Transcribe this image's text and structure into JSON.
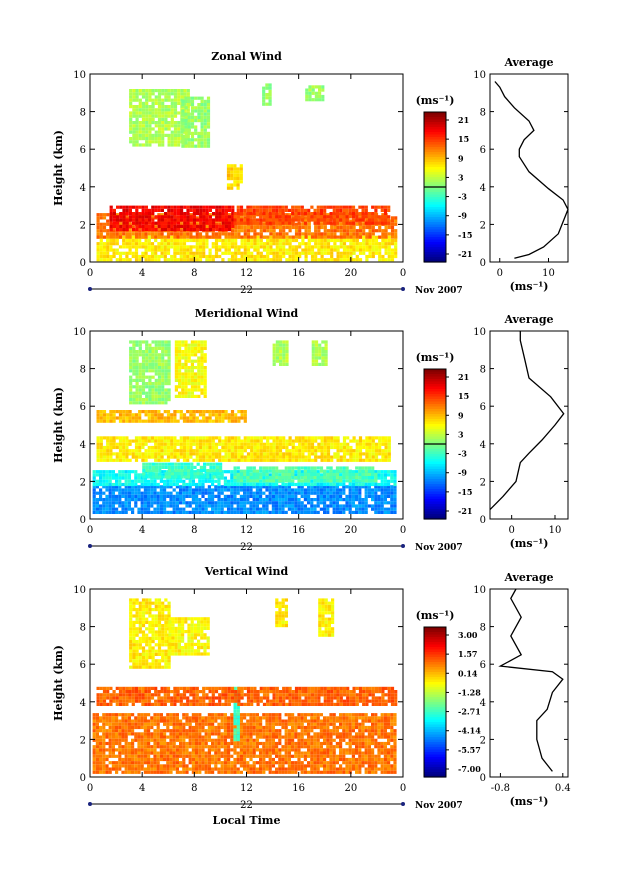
{
  "chart_data": [
    {
      "type": "heatmap",
      "title": "Zonal Wind",
      "ylabel": "Height (km)",
      "ylim": [
        0,
        10
      ],
      "yticks": [
        "0",
        "2",
        "4",
        "6",
        "8",
        "10"
      ],
      "xlim": [
        0,
        24
      ],
      "xticks": [
        "0",
        "4",
        "8",
        "12",
        "16",
        "20",
        "0"
      ],
      "day_label": "22",
      "date_label": "Nov 2007",
      "colorbar": {
        "unit": "(ms⁻¹)",
        "ticks": [
          "21",
          "15",
          "9",
          "3",
          "-3",
          "-9",
          "-15",
          "-21"
        ],
        "zero_line": true
      },
      "field": [
        {
          "x": [
            0.5,
            23.5
          ],
          "y": [
            0.2,
            1.4
          ],
          "v": 6
        },
        {
          "x": [
            0.5,
            23.5
          ],
          "y": [
            1.4,
            2.6
          ],
          "v": 11
        },
        {
          "x": [
            1.5,
            11
          ],
          "y": [
            1.8,
            3.0
          ],
          "v": 16
        },
        {
          "x": [
            11,
            23
          ],
          "y": [
            2.0,
            3.0
          ],
          "v": 13
        },
        {
          "x": [
            3,
            7.5
          ],
          "y": [
            6.2,
            9.2
          ],
          "v": 2
        },
        {
          "x": [
            7,
            9
          ],
          "y": [
            6.2,
            8.8
          ],
          "v": 1
        },
        {
          "x": [
            13.2,
            13.8
          ],
          "y": [
            8.4,
            9.5
          ],
          "v": 1
        },
        {
          "x": [
            16.5,
            17.8
          ],
          "y": [
            8.6,
            9.4
          ],
          "v": 1
        },
        {
          "x": [
            10.5,
            11.5
          ],
          "y": [
            4.0,
            5.2
          ],
          "v": 7
        }
      ],
      "average": {
        "title": "Average",
        "xlabel": "(ms⁻¹)",
        "xlim": [
          -2,
          14
        ],
        "xticks": [
          "0",
          "10"
        ],
        "ylim": [
          0,
          10
        ],
        "yticks": [
          "0",
          "2",
          "4",
          "6",
          "8",
          "10"
        ],
        "profile": [
          [
            3,
            0.2
          ],
          [
            6,
            0.4
          ],
          [
            9,
            0.8
          ],
          [
            12,
            1.5
          ],
          [
            14,
            2.8
          ],
          [
            13,
            3.3
          ],
          [
            10,
            3.9
          ],
          [
            6,
            4.8
          ],
          [
            4,
            5.6
          ],
          [
            4,
            6.0
          ],
          [
            5,
            6.5
          ],
          [
            7,
            7.0
          ],
          [
            6,
            7.5
          ],
          [
            3,
            8.2
          ],
          [
            1,
            8.8
          ],
          [
            0,
            9.3
          ],
          [
            -1,
            9.6
          ]
        ]
      }
    },
    {
      "type": "heatmap",
      "title": "Meridional Wind",
      "ylabel": "Height (km)",
      "ylim": [
        0,
        10
      ],
      "yticks": [
        "0",
        "2",
        "4",
        "6",
        "8",
        "10"
      ],
      "xlim": [
        0,
        24
      ],
      "xticks": [
        "0",
        "4",
        "8",
        "12",
        "16",
        "20",
        "0"
      ],
      "day_label": "22",
      "date_label": "Nov 2007",
      "colorbar": {
        "unit": "(ms⁻¹)",
        "ticks": [
          "21",
          "15",
          "9",
          "3",
          "-3",
          "-9",
          "-15",
          "-21"
        ],
        "zero_line": true
      },
      "field": [
        {
          "x": [
            0.2,
            23.5
          ],
          "y": [
            0.3,
            1.8
          ],
          "v": -10
        },
        {
          "x": [
            0.2,
            23.5
          ],
          "y": [
            1.8,
            2.6
          ],
          "v": -5
        },
        {
          "x": [
            4,
            10
          ],
          "y": [
            2.2,
            3.0
          ],
          "v": -3
        },
        {
          "x": [
            11,
            22
          ],
          "y": [
            2.0,
            2.8
          ],
          "v": -2
        },
        {
          "x": [
            0.5,
            23
          ],
          "y": [
            3.2,
            4.4
          ],
          "v": 6
        },
        {
          "x": [
            0.5,
            12
          ],
          "y": [
            5.2,
            5.8
          ],
          "v": 8
        },
        {
          "x": [
            3,
            6
          ],
          "y": [
            6.2,
            9.5
          ],
          "v": 1
        },
        {
          "x": [
            6.5,
            8.8
          ],
          "y": [
            6.5,
            9.5
          ],
          "v": 5
        },
        {
          "x": [
            14,
            15
          ],
          "y": [
            8.2,
            9.5
          ],
          "v": 2
        },
        {
          "x": [
            17,
            18
          ],
          "y": [
            8.2,
            9.5
          ],
          "v": 2
        }
      ],
      "average": {
        "title": "Average",
        "xlabel": "(ms⁻¹)",
        "xlim": [
          -5,
          13
        ],
        "xticks": [
          "0",
          "10"
        ],
        "ylim": [
          0,
          10
        ],
        "yticks": [
          "0",
          "2",
          "4",
          "6",
          "8",
          "10"
        ],
        "profile": [
          [
            -5,
            0.5
          ],
          [
            -2,
            1.2
          ],
          [
            1,
            2.0
          ],
          [
            2,
            3.0
          ],
          [
            4,
            3.5
          ],
          [
            7,
            4.2
          ],
          [
            10,
            5.0
          ],
          [
            12,
            5.6
          ],
          [
            9,
            6.5
          ],
          [
            4,
            7.5
          ],
          [
            3,
            8.5
          ],
          [
            2,
            9.5
          ],
          [
            2,
            10
          ]
        ]
      }
    },
    {
      "type": "heatmap",
      "title": "Vertical Wind",
      "ylabel": "Height (km)",
      "xlabel": "Local Time",
      "ylim": [
        0,
        10
      ],
      "yticks": [
        "0",
        "2",
        "4",
        "6",
        "8",
        "10"
      ],
      "xlim": [
        0,
        24
      ],
      "xticks": [
        "0",
        "4",
        "8",
        "12",
        "16",
        "20",
        "0"
      ],
      "day_label": "22",
      "date_label": "Nov 2007",
      "colorbar": {
        "unit": "(ms⁻¹)",
        "ticks": [
          "3.00",
          "1.57",
          "0.14",
          "-1.28",
          "-2.71",
          "-4.14",
          "-5.57",
          "-7.00"
        ],
        "zero_line": false
      },
      "field": [
        {
          "x": [
            0.2,
            23.5
          ],
          "y": [
            0.2,
            3.4
          ],
          "v": 0.6
        },
        {
          "x": [
            3,
            6
          ],
          "y": [
            5.8,
            9.5
          ],
          "v": -0.6
        },
        {
          "x": [
            6,
            9
          ],
          "y": [
            6.5,
            8.5
          ],
          "v": -0.7
        },
        {
          "x": [
            14.2,
            15
          ],
          "y": [
            8,
            9.5
          ],
          "v": -0.6
        },
        {
          "x": [
            17.5,
            18.5
          ],
          "y": [
            7.5,
            9.5
          ],
          "v": -0.6
        },
        {
          "x": [
            11,
            11.4
          ],
          "y": [
            2,
            4.8
          ],
          "v": -2.6
        },
        {
          "x": [
            0.5,
            23.5
          ],
          "y": [
            3.8,
            4.8
          ],
          "v": 0.8
        }
      ],
      "average": {
        "title": "Average",
        "xlabel": "(ms⁻¹)",
        "xlim": [
          -1,
          0.5
        ],
        "xticks": [
          "-0.8",
          "0.4"
        ],
        "ylim": [
          0,
          10
        ],
        "yticks": [
          "0",
          "2",
          "4",
          "6",
          "8",
          "10"
        ],
        "profile": [
          [
            0.2,
            0.3
          ],
          [
            0.0,
            1.0
          ],
          [
            -0.1,
            2.0
          ],
          [
            -0.1,
            3.0
          ],
          [
            0.1,
            3.6
          ],
          [
            0.2,
            4.5
          ],
          [
            0.4,
            5.2
          ],
          [
            0.2,
            5.6
          ],
          [
            -0.8,
            5.9
          ],
          [
            -0.4,
            6.5
          ],
          [
            -0.6,
            7.5
          ],
          [
            -0.4,
            8.5
          ],
          [
            -0.6,
            9.5
          ],
          [
            -0.5,
            10
          ]
        ]
      }
    }
  ]
}
